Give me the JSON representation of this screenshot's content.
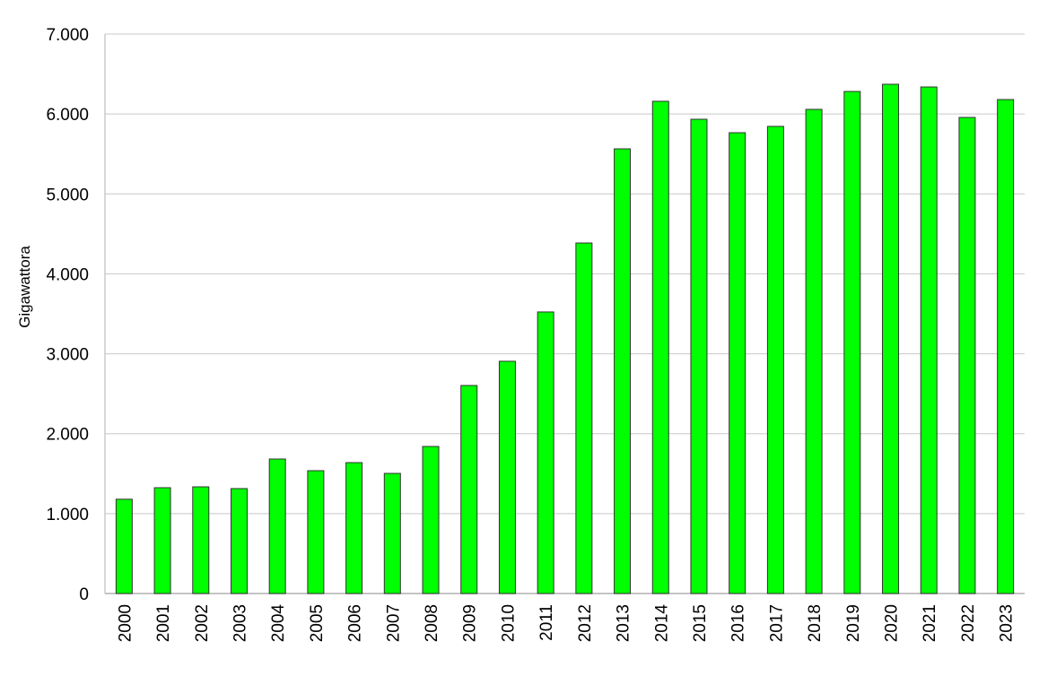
{
  "chart_data": {
    "type": "bar",
    "title": "",
    "xlabel": "",
    "ylabel": "Gigawattora",
    "ylim": [
      0,
      7000
    ],
    "yticks": [
      0,
      1000,
      2000,
      3000,
      4000,
      5000,
      6000,
      7000
    ],
    "ytick_labels": [
      "0",
      "1.000",
      "2.000",
      "3.000",
      "4.000",
      "5.000",
      "6.000",
      "7.000"
    ],
    "grid": true,
    "bar_color": "#00ff00",
    "categories": [
      "2000",
      "2001",
      "2002",
      "2003",
      "2004",
      "2005",
      "2006",
      "2007",
      "2008",
      "2009",
      "2010",
      "2011",
      "2012",
      "2013",
      "2014",
      "2015",
      "2016",
      "2017",
      "2018",
      "2019",
      "2020",
      "2021",
      "2022",
      "2023"
    ],
    "values": [
      1180,
      1324,
      1335,
      1313,
      1683,
      1537,
      1638,
      1503,
      1840,
      2603,
      2906,
      3523,
      4386,
      5564,
      6159,
      5934,
      5766,
      5845,
      6058,
      6282,
      6372,
      6338,
      5957,
      6181
    ]
  }
}
